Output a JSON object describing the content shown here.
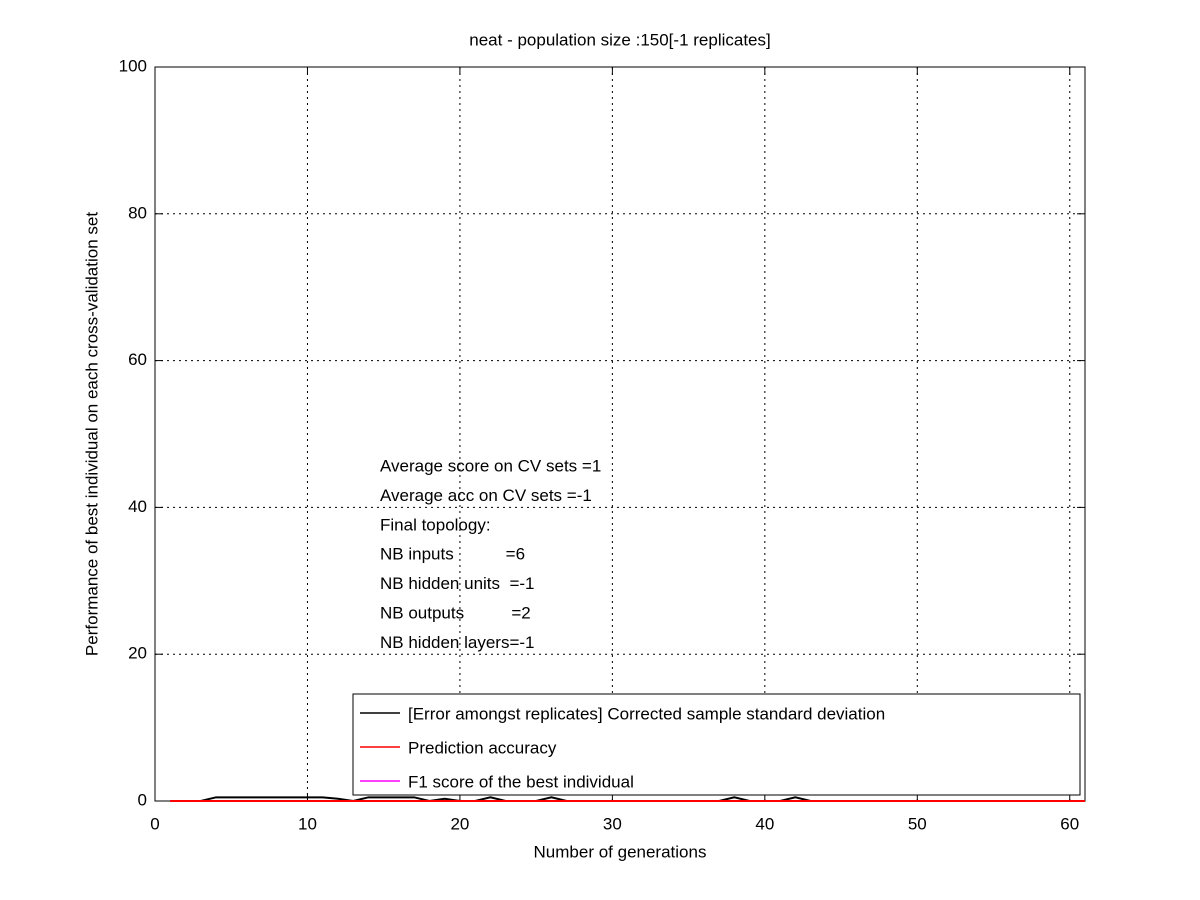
{
  "chart_data": {
    "type": "line",
    "title": "neat - population size :150[-1 replicates]",
    "xlabel": "Number of generations",
    "ylabel": "Performance of best individual on each cross-validation set",
    "annotations": [
      "Average score on CV sets =1",
      "Average acc on CV sets =-1",
      "Final topology:",
      "NB inputs           =6",
      "NB hidden units  =-1",
      "NB outputs          =2",
      "NB hidden layers=-1"
    ],
    "x": [
      1,
      2,
      3,
      4,
      5,
      6,
      7,
      8,
      9,
      10,
      11,
      12,
      13,
      14,
      15,
      16,
      17,
      18,
      19,
      20,
      21,
      22,
      23,
      24,
      25,
      26,
      27,
      28,
      29,
      30,
      31,
      32,
      33,
      34,
      35,
      36,
      37,
      38,
      39,
      40,
      41,
      42,
      43,
      44,
      45,
      46,
      47,
      48,
      49,
      50,
      51,
      52,
      53,
      54,
      55,
      56,
      57,
      58,
      59,
      60,
      61
    ],
    "series": [
      {
        "name": "[Error amongst replicates] Corrected sample standard deviation",
        "color": "#000000",
        "values": [
          0,
          0,
          0,
          0.5,
          0.5,
          0.5,
          0.5,
          0.5,
          0.5,
          0.5,
          0.5,
          0.3,
          0,
          0.5,
          0.5,
          0.5,
          0.5,
          0,
          0.3,
          0,
          0,
          0.5,
          0,
          0,
          0,
          0.5,
          0,
          0,
          0,
          0,
          0,
          0,
          0,
          0,
          0,
          0,
          0,
          0.5,
          0,
          0,
          0,
          0.5,
          0,
          0,
          0,
          0,
          0,
          0,
          0,
          0,
          0,
          0,
          0,
          0,
          0,
          0,
          0,
          0,
          0,
          0,
          0
        ]
      },
      {
        "name": "Prediction accuracy",
        "color": "#ff0000",
        "values": [
          0,
          0,
          0,
          0,
          0,
          0,
          0,
          0,
          0,
          0,
          0,
          0,
          0,
          0,
          0,
          0,
          0,
          0,
          0,
          0,
          0,
          0,
          0,
          0,
          0,
          0,
          0,
          0,
          0,
          0,
          0,
          0,
          0,
          0,
          0,
          0,
          0,
          0,
          0,
          0,
          0,
          0,
          0,
          0,
          0,
          0,
          0,
          0,
          0,
          0,
          0,
          0,
          0,
          0,
          0,
          0,
          0,
          0,
          0,
          0,
          0
        ]
      },
      {
        "name": "F1 score of the best individual",
        "color": "#ff00ff",
        "values": [
          0,
          0,
          0,
          0,
          0,
          0,
          0,
          0,
          0,
          0,
          0,
          0,
          0,
          0,
          0,
          0,
          0,
          0,
          0,
          0,
          0,
          0,
          0,
          0,
          0,
          0,
          0,
          0,
          0,
          0,
          0,
          0,
          0,
          0,
          0,
          0,
          0,
          0,
          0,
          0,
          0,
          0,
          0,
          0,
          0,
          0,
          0,
          0,
          0,
          0,
          0,
          0,
          0,
          0,
          0,
          0,
          0,
          0,
          0,
          0,
          0
        ]
      }
    ],
    "xlim": [
      0,
      61
    ],
    "xticks": [
      0,
      10,
      20,
      30,
      40,
      50,
      60
    ],
    "ylim": [
      0,
      100
    ],
    "yticks": [
      0,
      20,
      40,
      60,
      80,
      100
    ],
    "grid": true,
    "legend": "south"
  }
}
